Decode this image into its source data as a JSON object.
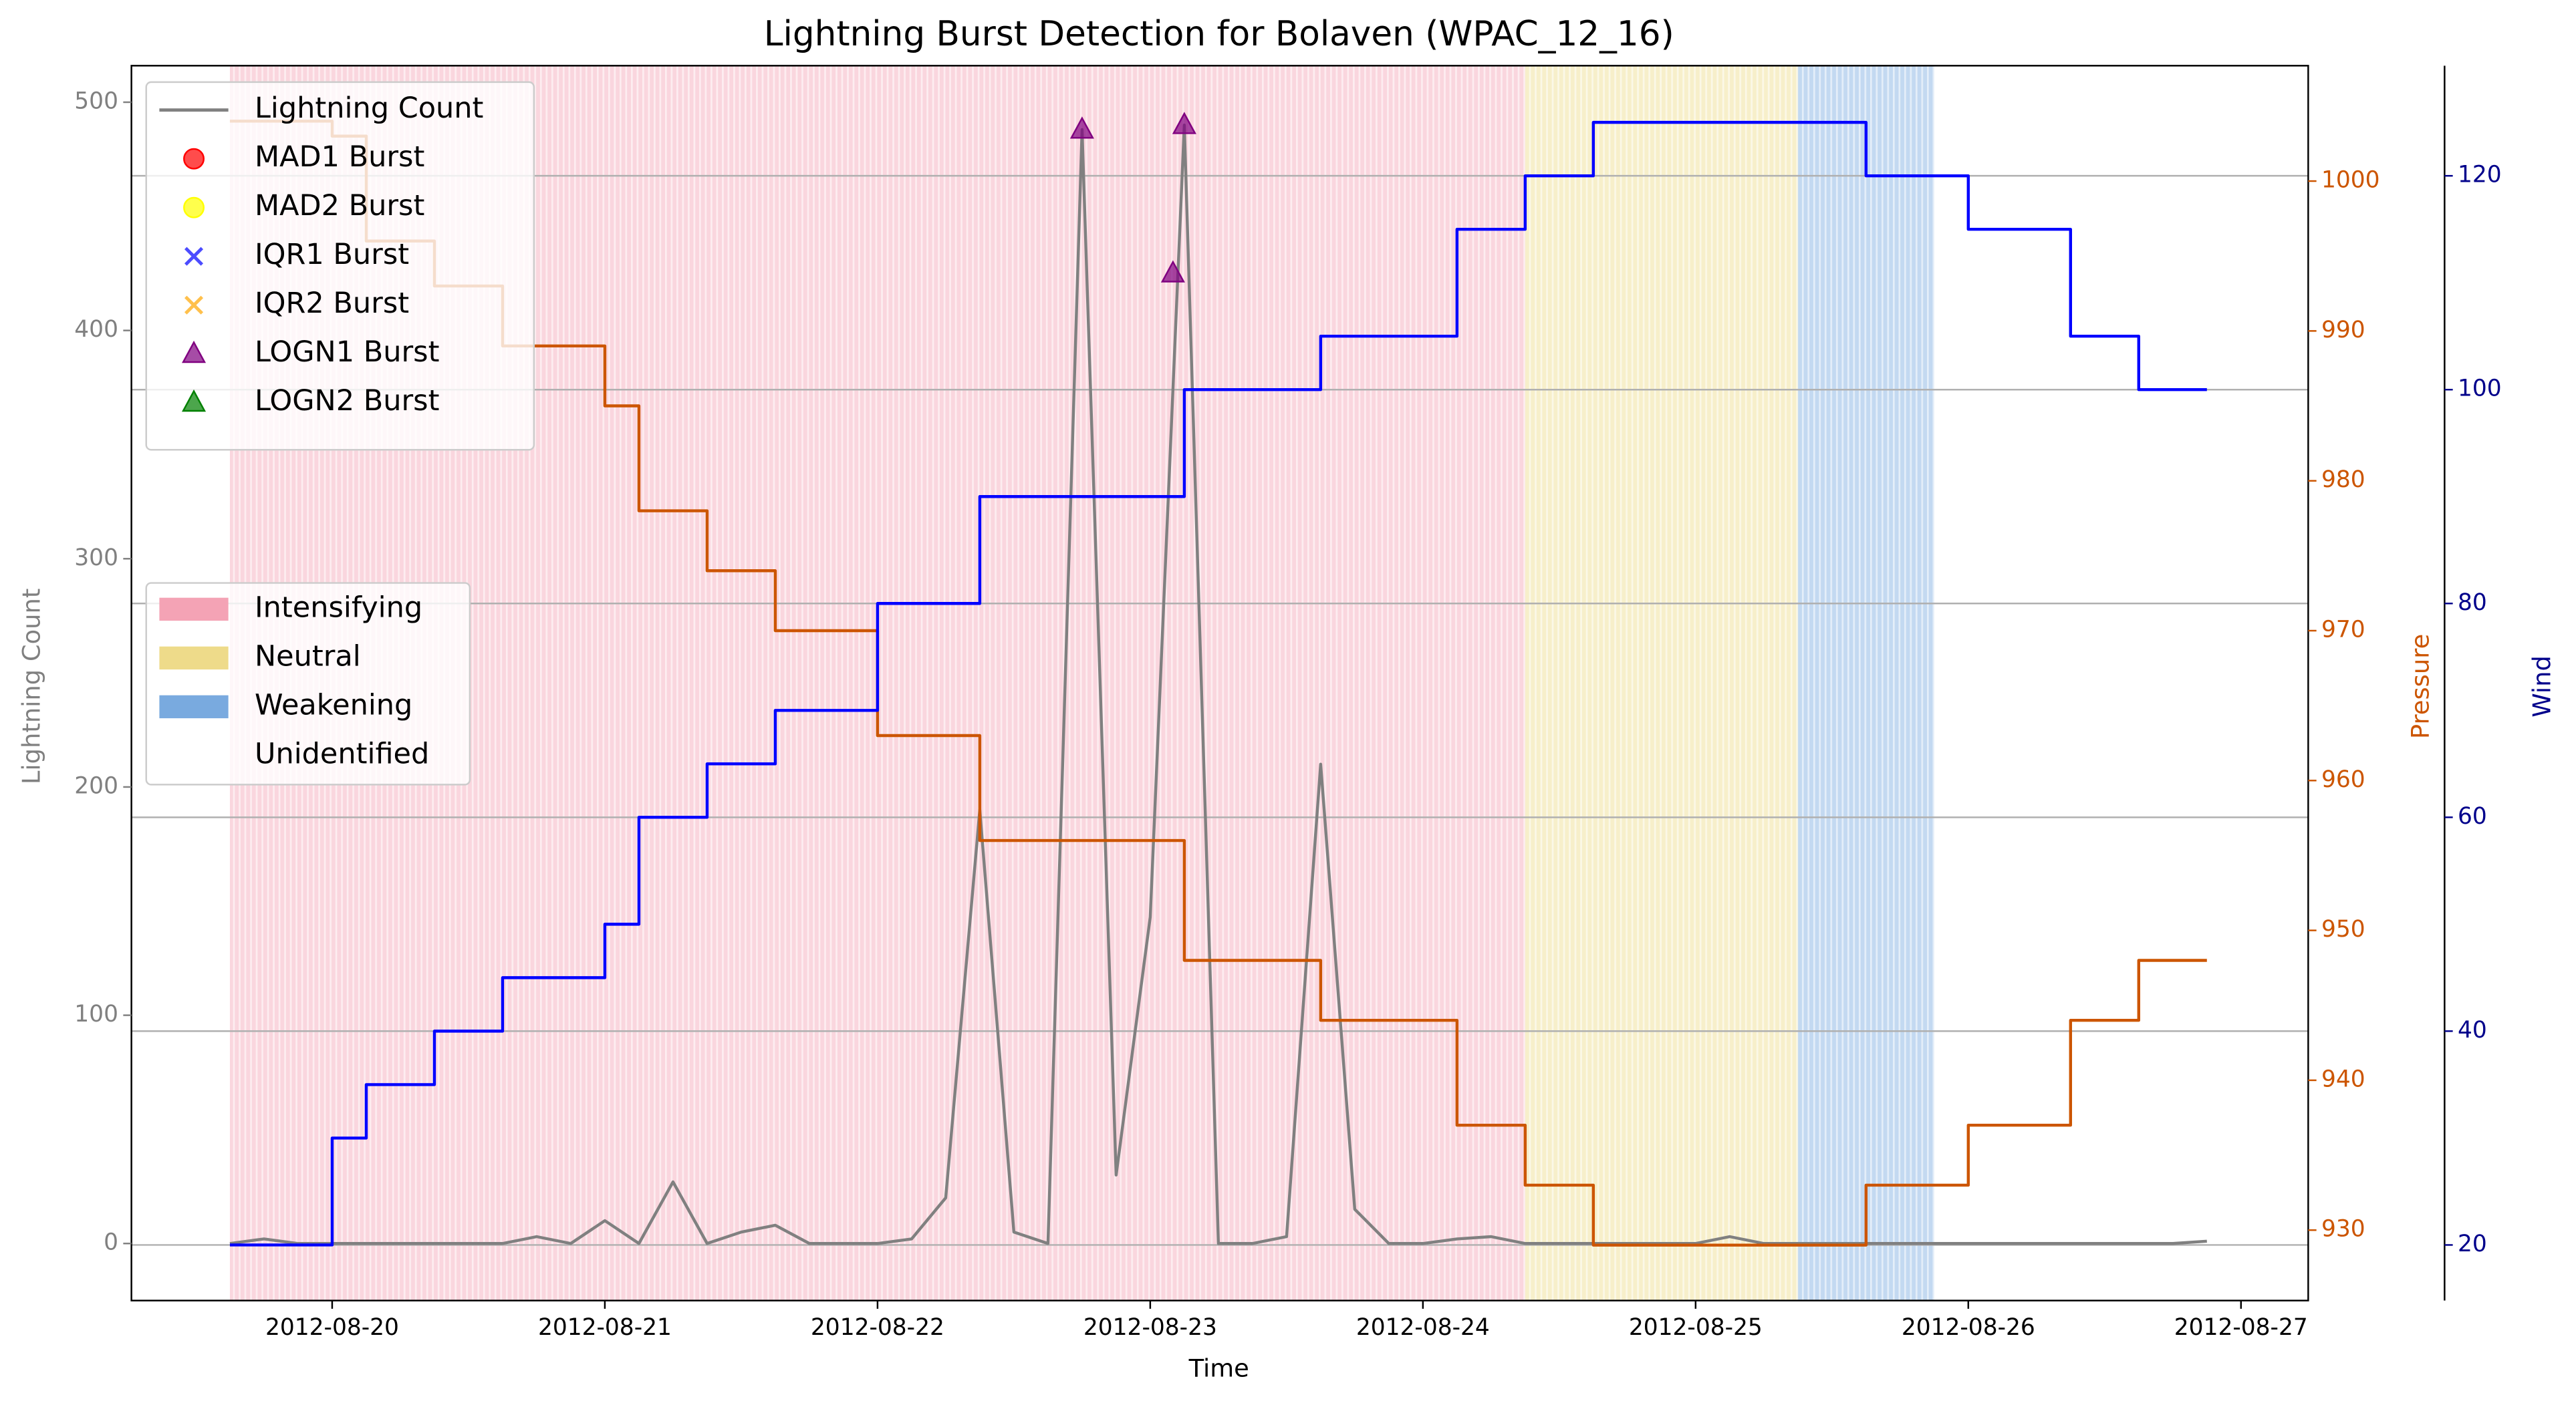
{
  "chart_data": {
    "type": "line",
    "title": "Lightning Burst Detection for Bolaven (WPAC_12_16)",
    "xlabel": "Time",
    "x": [
      "2012-08-19T15:00",
      "2012-08-19T18:00",
      "2012-08-19T21:00",
      "2012-08-20T00:00",
      "2012-08-20T03:00",
      "2012-08-20T06:00",
      "2012-08-20T09:00",
      "2012-08-20T12:00",
      "2012-08-20T15:00",
      "2012-08-20T18:00",
      "2012-08-20T21:00",
      "2012-08-21T00:00",
      "2012-08-21T03:00",
      "2012-08-21T06:00",
      "2012-08-21T09:00",
      "2012-08-21T12:00",
      "2012-08-21T15:00",
      "2012-08-21T18:00",
      "2012-08-21T21:00",
      "2012-08-22T00:00",
      "2012-08-22T03:00",
      "2012-08-22T06:00",
      "2012-08-22T09:00",
      "2012-08-22T12:00",
      "2012-08-22T15:00",
      "2012-08-22T18:00",
      "2012-08-22T21:00",
      "2012-08-23T00:00",
      "2012-08-23T03:00",
      "2012-08-23T06:00",
      "2012-08-23T09:00",
      "2012-08-23T12:00",
      "2012-08-23T15:00",
      "2012-08-23T18:00",
      "2012-08-23T21:00",
      "2012-08-24T00:00",
      "2012-08-24T03:00",
      "2012-08-24T06:00",
      "2012-08-24T09:00",
      "2012-08-24T12:00",
      "2012-08-24T15:00",
      "2012-08-24T18:00",
      "2012-08-24T21:00",
      "2012-08-25T00:00",
      "2012-08-25T03:00",
      "2012-08-25T06:00",
      "2012-08-25T09:00",
      "2012-08-25T12:00",
      "2012-08-25T15:00",
      "2012-08-25T18:00",
      "2012-08-25T21:00",
      "2012-08-26T00:00",
      "2012-08-26T03:00",
      "2012-08-26T06:00",
      "2012-08-26T09:00",
      "2012-08-26T12:00",
      "2012-08-26T15:00",
      "2012-08-26T18:00",
      "2012-08-26T21:00"
    ],
    "xlim": [
      "2012-08-19T06:20",
      "2012-08-27T05:55"
    ],
    "xticks": [
      "2012-08-20",
      "2012-08-21",
      "2012-08-22",
      "2012-08-23",
      "2012-08-24",
      "2012-08-25",
      "2012-08-26",
      "2012-08-27"
    ],
    "series": [
      {
        "name": "Lightning Count",
        "color": "#808080",
        "axis": "y",
        "values": [
          0,
          2,
          0,
          0,
          0,
          0,
          0,
          0,
          0,
          3,
          0,
          10,
          0,
          27,
          0,
          5,
          8,
          0,
          0,
          0,
          2,
          20,
          190,
          5,
          0,
          488,
          30,
          143,
          490,
          0,
          0,
          3,
          210,
          15,
          0,
          0,
          2,
          3,
          0,
          0,
          0,
          0,
          0,
          0,
          3,
          0,
          0,
          0,
          0,
          0,
          0,
          0,
          0,
          0,
          0,
          0,
          0,
          0,
          1
        ]
      },
      {
        "color": "#cc5500",
        "axis": "y2",
        "step": true,
        "values": [
          1004,
          1004,
          1004,
          1003,
          996,
          996,
          993,
          993,
          989,
          989,
          989,
          985,
          978,
          978,
          974,
          974,
          970,
          970,
          970,
          963,
          963,
          963,
          956,
          956,
          956,
          956,
          956,
          956,
          948,
          948,
          948,
          948,
          944,
          944,
          944,
          944,
          937,
          937,
          933,
          933,
          929,
          929,
          929,
          929,
          929,
          929,
          929,
          929,
          933,
          933,
          933,
          937,
          937,
          937,
          944,
          944,
          948,
          948,
          948
        ]
      },
      {
        "color": "#0000ff",
        "axis": "y3",
        "step": true,
        "values": [
          20,
          20,
          20,
          30,
          35,
          35,
          40,
          40,
          45,
          45,
          45,
          50,
          60,
          60,
          65,
          65,
          70,
          70,
          70,
          80,
          80,
          80,
          90,
          90,
          90,
          90,
          90,
          90,
          100,
          100,
          100,
          100,
          105,
          105,
          105,
          105,
          115,
          115,
          120,
          120,
          125,
          125,
          125,
          125,
          125,
          125,
          125,
          125,
          120,
          120,
          120,
          115,
          115,
          115,
          105,
          105,
          100,
          100,
          100
        ]
      }
    ],
    "ylabel": "Lightning Count",
    "ylim": [
      -25,
      516
    ],
    "yticks": [
      0,
      100,
      200,
      300,
      400,
      500
    ],
    "ycolor": "#808080",
    "y2label": "Pressure",
    "y2lim": [
      925.3,
      1007.7
    ],
    "y2ticks": [
      930,
      940,
      950,
      960,
      970,
      980,
      990,
      1000
    ],
    "y2color": "#cc5500",
    "y3label": "Wind",
    "y3lim": [
      14.8,
      130.3
    ],
    "y3ticks": [
      20,
      40,
      60,
      80,
      100,
      120
    ],
    "y3color": "#00008b",
    "grid": "y3",
    "bursts": [
      {
        "name": "MAD1 Burst",
        "color": "#ff0000",
        "marker": "o",
        "x": [],
        "values": []
      },
      {
        "name": "MAD2 Burst",
        "color": "#ffff00",
        "marker": "o",
        "x": [],
        "values": []
      },
      {
        "name": "IQR1 Burst",
        "color": "#0000ff",
        "marker": "x",
        "x": [],
        "values": []
      },
      {
        "name": "IQR2 Burst",
        "color": "#ffa500",
        "marker": "x",
        "x": [],
        "values": []
      },
      {
        "name": "LOGN1 Burst",
        "color": "#800080",
        "marker": "^",
        "x": [
          "2012-08-22T18:00",
          "2012-08-23T02:00",
          "2012-08-23T03:00"
        ],
        "values": [
          488,
          425,
          490
        ]
      },
      {
        "name": "LOGN2 Burst",
        "color": "#008000",
        "marker": "^",
        "x": [],
        "values": []
      }
    ],
    "legend": "upper left",
    "phases": [
      {
        "name": "Intensifying",
        "color": "#f4a3b5",
        "start": "2012-08-19T15:00",
        "end": "2012-08-24T09:00"
      },
      {
        "name": "Neutral",
        "color": "#eedb8a",
        "start": "2012-08-24T09:00",
        "end": "2012-08-25T09:00"
      },
      {
        "name": "Weakening",
        "color": "#79aadf",
        "start": "2012-08-25T09:00",
        "end": "2012-08-25T21:00"
      },
      {
        "name": "Unidentified",
        "color": "#ffffff",
        "start": "2012-08-25T21:00",
        "end": "2012-08-26T21:00"
      }
    ],
    "phase_legend": "center left"
  }
}
